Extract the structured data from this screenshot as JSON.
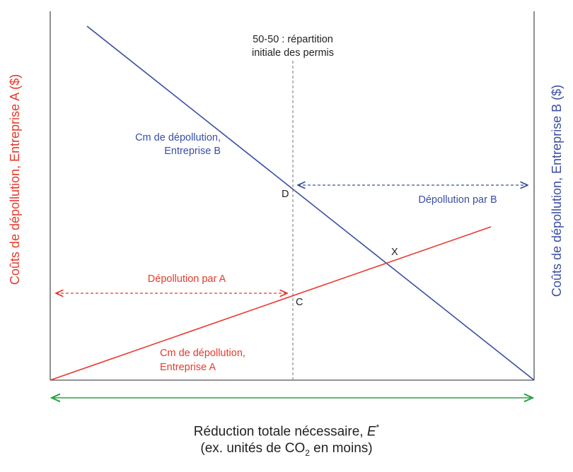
{
  "diagram": {
    "left_axis_label": "Coûts de dépollution, Entreprise A ($)",
    "right_axis_label": "Coûts de dépollution, Entreprise B ($)",
    "x_title_line1_prefix": "Réduction totale nécessaire, ",
    "x_title_line1_var": "E",
    "x_title_line1_sup": "*",
    "x_title_line2_prefix": "(ex. unités de CO",
    "x_title_line2_sub": "2",
    "x_title_line2_suffix": " en moins)",
    "split_label_line1": "50-50 : répartition",
    "split_label_line2": "initiale des permis",
    "curve_b_label_line1": "Cm de dépollution,",
    "curve_b_label_line2": "Entreprise B",
    "curve_a_label_line1": "Cm de dépollution,",
    "curve_a_label_line2": "Entreprise A",
    "abatement_a_label": "Dépollution par A",
    "abatement_b_label": "Dépollution par B",
    "point_c": "C",
    "point_d": "D",
    "point_x": "X",
    "colors": {
      "firm_a": "#e8392b",
      "firm_b": "#3a4ea3",
      "total": "#2ca444",
      "axis": "#555555",
      "guide": "#8a8a8a",
      "text": "#222222"
    }
  }
}
